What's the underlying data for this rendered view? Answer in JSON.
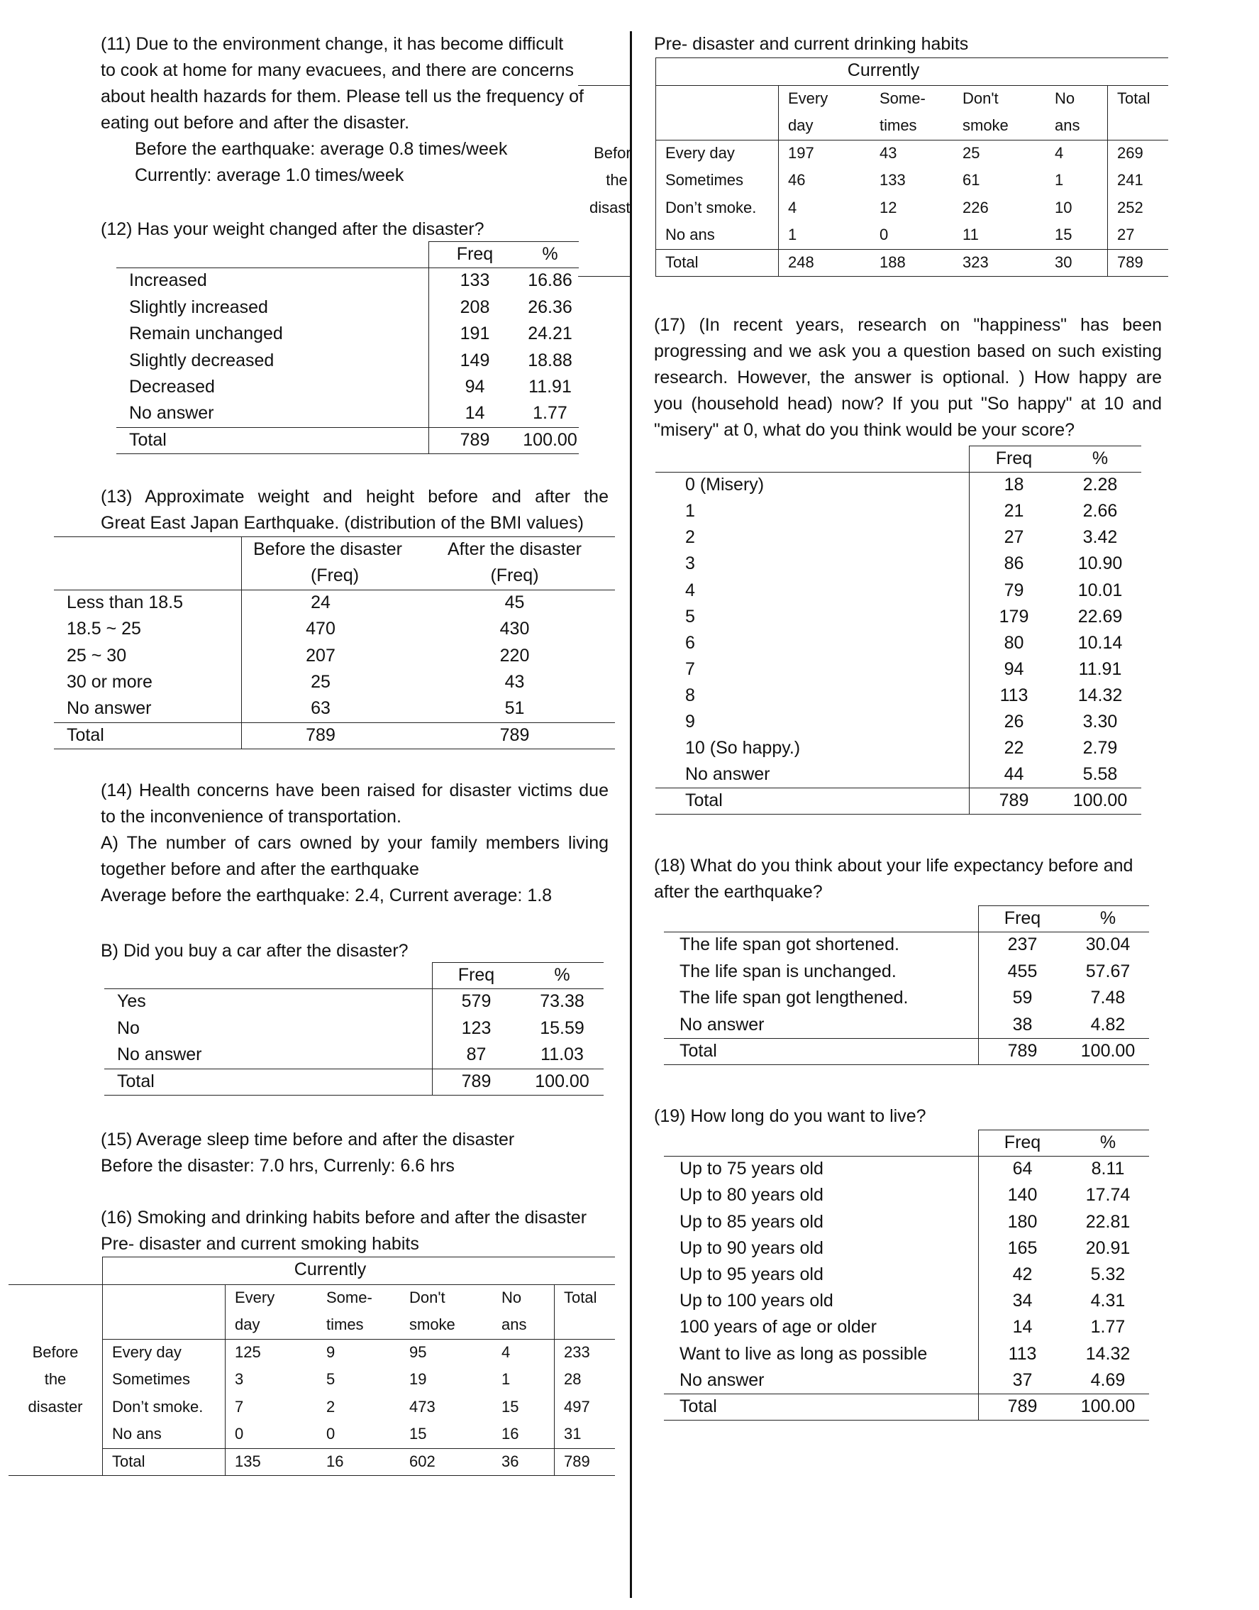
{
  "q11": {
    "lines": [
      "(11) Due to the environment change, it has become difficult",
      "to cook at home for many evacuees, and there are concerns",
      "about health hazards for them. Please tell us the frequency of",
      "eating out before and after the disaster."
    ],
    "before": "Before the earthquake: average 0.8 times/week",
    "current": "Currently: average 1.0 times/week"
  },
  "q12": {
    "title": "(12) Has your weight changed after the disaster?",
    "headers": [
      "Freq",
      "%"
    ],
    "rows": [
      [
        "Increased",
        "133",
        "16.86"
      ],
      [
        "Slightly increased",
        "208",
        "26.36"
      ],
      [
        "Remain unchanged",
        "191",
        "24.21"
      ],
      [
        "Slightly decreased",
        "149",
        "18.88"
      ],
      [
        "Decreased",
        "94",
        "11.91"
      ],
      [
        "No answer",
        "14",
        "1.77"
      ]
    ],
    "total": [
      "Total",
      "789",
      "100.00"
    ]
  },
  "q13": {
    "title_lines": [
      "(13) Approximate weight and height before and after the",
      "Great East Japan Earthquake. (distribution of the BMI values)"
    ],
    "headers": [
      [
        "Before the disaster",
        "(Freq)"
      ],
      [
        "After the disaster",
        "(Freq)"
      ]
    ],
    "rows": [
      [
        "Less than 18.5",
        "24",
        "45"
      ],
      [
        "18.5 ~ 25",
        "470",
        "430"
      ],
      [
        "25 ~ 30",
        "207",
        "220"
      ],
      [
        "30 or more",
        "25",
        "43"
      ],
      [
        "No answer",
        "63",
        "51"
      ]
    ],
    "total": [
      "Total",
      "789",
      "789"
    ]
  },
  "q14": {
    "lines": [
      "(14) Health concerns have been raised for disaster victims due",
      "to the inconvenience of transportation.",
      "A) The number of cars owned by your family members living",
      "together before and after the earthquake",
      "Average before the earthquake: 2.4, Current average: 1.8"
    ],
    "b_title": "B) Did you buy a car after the disaster?",
    "headers": [
      "Freq",
      "%"
    ],
    "rows": [
      [
        "Yes",
        "579",
        "73.38"
      ],
      [
        "No",
        "123",
        "15.59"
      ],
      [
        "No answer",
        "87",
        "11.03"
      ]
    ],
    "total": [
      "Total",
      "789",
      "100.00"
    ]
  },
  "q15": {
    "lines": [
      "(15) Average sleep time before and after the disaster",
      "Before the disaster: 7.0 hrs, Currenly: 6.6 hrs"
    ]
  },
  "q16": {
    "lines": [
      "(16) Smoking and drinking habits before and after the disaster",
      "Pre- disaster and current smoking habits"
    ],
    "smoking": {
      "currently": "Currently",
      "before_label": [
        "Before",
        "the",
        "disaster"
      ],
      "col_headers": [
        [
          "Every",
          "day"
        ],
        [
          "Some-",
          "times"
        ],
        [
          "Don't",
          "smoke"
        ],
        [
          "No",
          "ans"
        ],
        [
          "Total",
          ""
        ]
      ],
      "rows": [
        [
          "Every day",
          "125",
          "9",
          "95",
          "4",
          "233"
        ],
        [
          "Sometimes",
          "3",
          "5",
          "19",
          "1",
          "28"
        ],
        [
          "Don’t smoke.",
          "7",
          "2",
          "473",
          "15",
          "497"
        ],
        [
          "No ans",
          "0",
          "0",
          "15",
          "16",
          "31"
        ]
      ],
      "total": [
        "Total",
        "135",
        "16",
        "602",
        "36",
        "789"
      ]
    },
    "drinking_title": "Pre- disaster and current drinking habits",
    "drinking": {
      "currently": "Currently",
      "before_label": [
        "Before",
        "the",
        "disaster"
      ],
      "col_headers": [
        [
          "Every",
          "day"
        ],
        [
          "Some-",
          "times"
        ],
        [
          "Don't",
          "smoke"
        ],
        [
          "No",
          "ans"
        ],
        [
          "Total",
          ""
        ]
      ],
      "rows": [
        [
          "Every day",
          "197",
          "43",
          "25",
          "4",
          "269"
        ],
        [
          "Sometimes",
          "46",
          "133",
          "61",
          "1",
          "241"
        ],
        [
          "Don’t smoke.",
          "4",
          "12",
          "226",
          "10",
          "252"
        ],
        [
          "No ans",
          "1",
          "0",
          "11",
          "15",
          "27"
        ]
      ],
      "total": [
        "Total",
        "248",
        "188",
        "323",
        "30",
        "789"
      ]
    }
  },
  "q17": {
    "lines": [
      "(17)  (In recent years, research on \"happiness\" has been",
      "progressing and we ask you a question based on such existing",
      "research. However, the answer is optional. ) How happy are",
      "you (household head) now? If you put \"So happy\" at 10 and",
      "\"misery\" at 0, what do you think would be your score?"
    ],
    "headers": [
      "Freq",
      "%"
    ],
    "rows": [
      [
        "0 (Misery)",
        "18",
        "2.28"
      ],
      [
        "1",
        "21",
        "2.66"
      ],
      [
        "2",
        "27",
        "3.42"
      ],
      [
        "3",
        "86",
        "10.90"
      ],
      [
        "4",
        "79",
        "10.01"
      ],
      [
        "5",
        "179",
        "22.69"
      ],
      [
        "6",
        "80",
        "10.14"
      ],
      [
        "7",
        "94",
        "11.91"
      ],
      [
        "8",
        "113",
        "14.32"
      ],
      [
        "9",
        "26",
        "3.30"
      ],
      [
        "10 (So happy.)",
        "22",
        "2.79"
      ],
      [
        "No answer",
        "44",
        "5.58"
      ]
    ],
    "total": [
      "Total",
      "789",
      "100.00"
    ]
  },
  "q18": {
    "lines": [
      "(18) What do you think about your life expectancy before and",
      "after the earthquake?"
    ],
    "headers": [
      "Freq",
      "%"
    ],
    "rows": [
      [
        "The life span got shortened.",
        "237",
        "30.04"
      ],
      [
        "The life span is unchanged.",
        "455",
        "57.67"
      ],
      [
        "The life span got lengthened.",
        "59",
        "7.48"
      ],
      [
        "No answer",
        "38",
        "4.82"
      ]
    ],
    "total": [
      "Total",
      "789",
      "100.00"
    ]
  },
  "q19": {
    "title": "(19) How long do you want to live?",
    "headers": [
      "Freq",
      "%"
    ],
    "rows": [
      [
        "Up to 75 years old",
        "64",
        "8.11"
      ],
      [
        "Up to 80 years old",
        "140",
        "17.74"
      ],
      [
        "Up to 85 years old",
        "180",
        "22.81"
      ],
      [
        "Up to 90 years old",
        "165",
        "20.91"
      ],
      [
        "Up to 95 years old",
        "42",
        "5.32"
      ],
      [
        "Up to 100 years old",
        "34",
        "4.31"
      ],
      [
        "100 years of age or older",
        "14",
        "1.77"
      ],
      [
        "Want to live as long as possible",
        "113",
        "14.32"
      ],
      [
        "No answer",
        "37",
        "4.69"
      ]
    ],
    "total": [
      "Total",
      "789",
      "100.00"
    ]
  }
}
